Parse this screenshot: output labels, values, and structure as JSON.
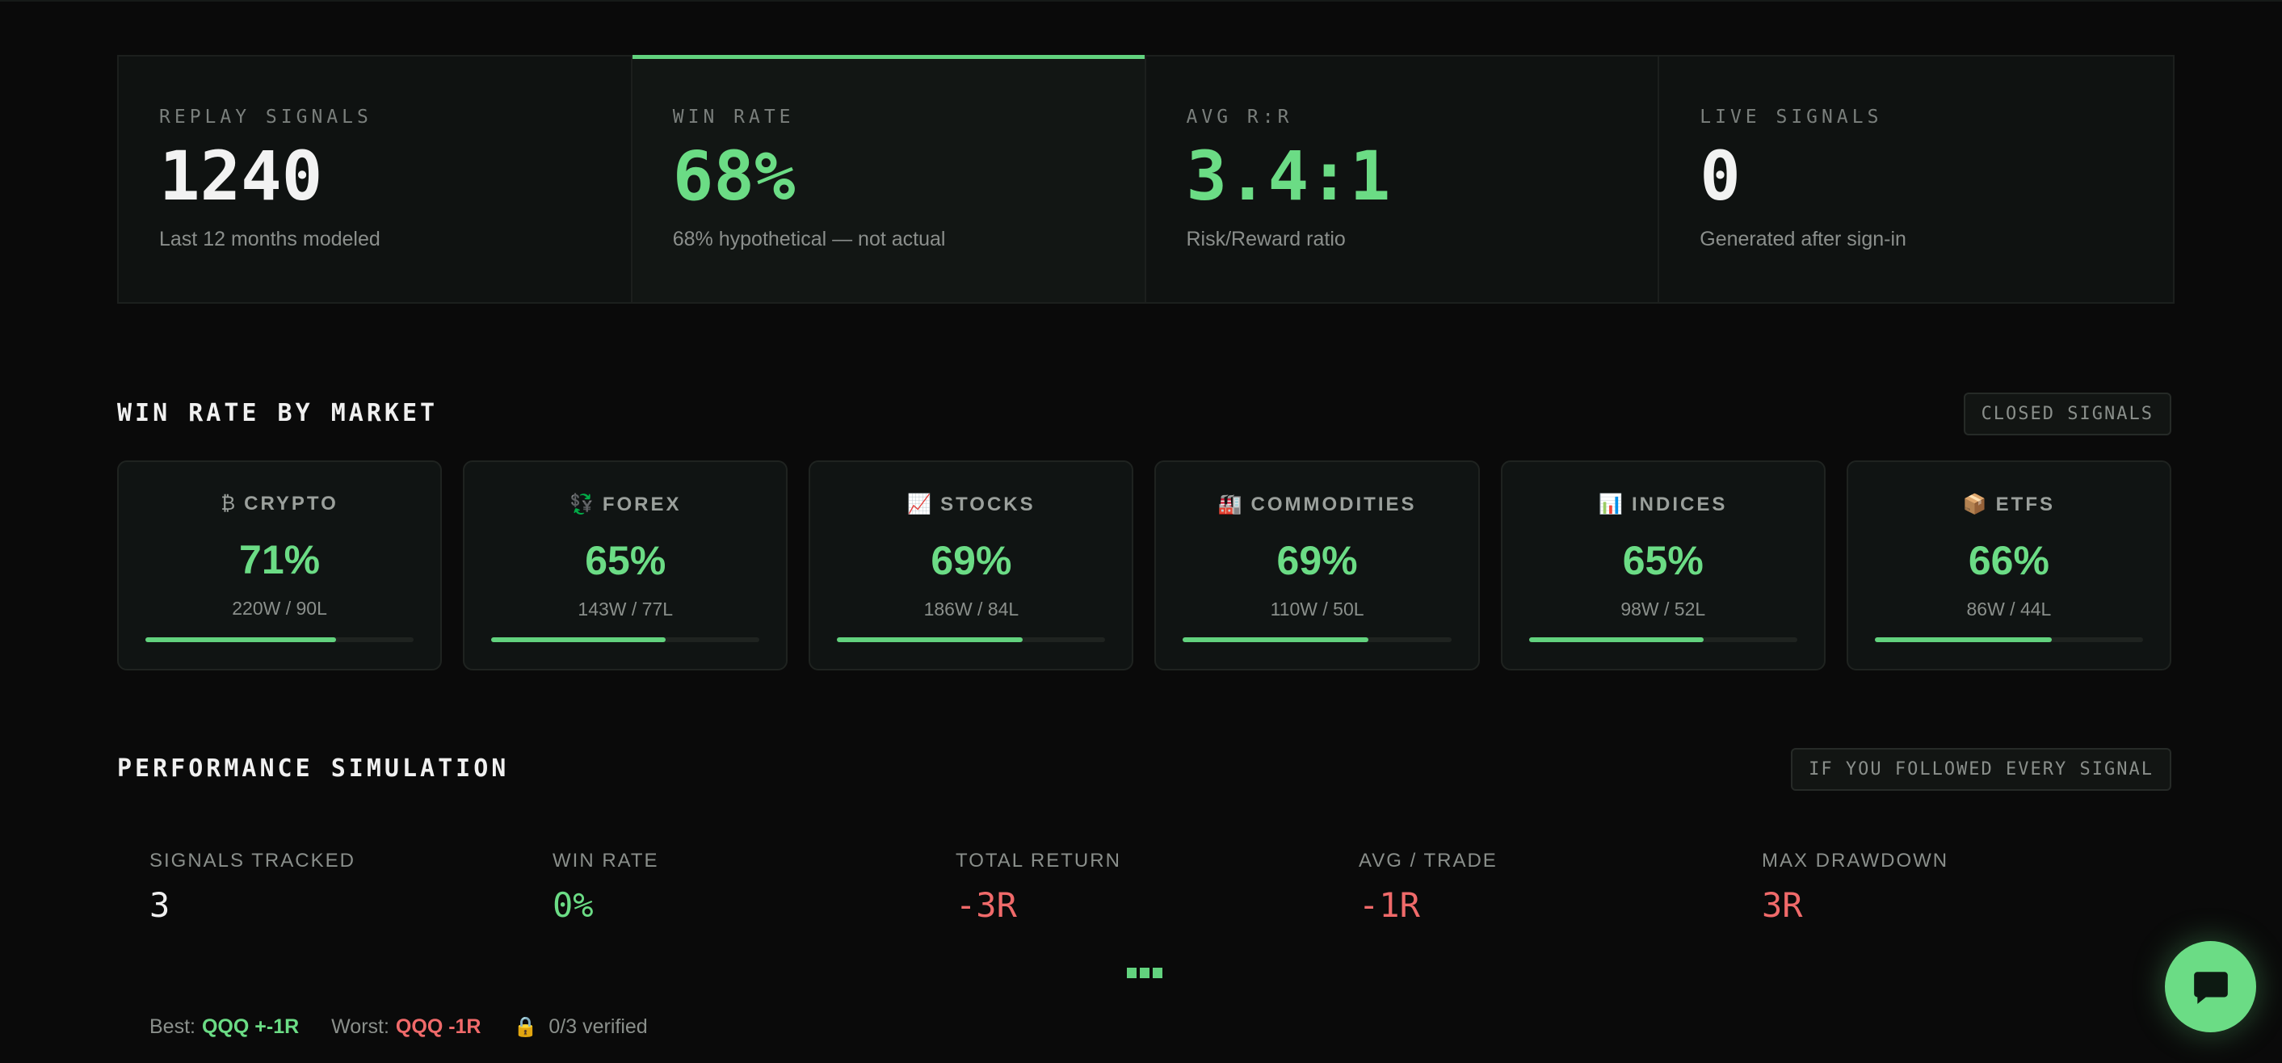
{
  "stats": [
    {
      "label": "REPLAY SIGNALS",
      "value": "1240",
      "sub": "Last 12 months modeled"
    },
    {
      "label": "WIN RATE",
      "value": "68%",
      "sub": "68% hypothetical — not actual"
    },
    {
      "label": "AVG R:R",
      "value": "3.4:1",
      "sub": "Risk/Reward ratio"
    },
    {
      "label": "LIVE SIGNALS",
      "value": "0",
      "sub": "Generated after sign-in"
    }
  ],
  "win_rate_section": {
    "title": "WIN RATE BY MARKET",
    "badge": "CLOSED SIGNALS"
  },
  "markets": [
    {
      "icon": "₿",
      "icon_name": "bitcoin-icon",
      "name": "CRYPTO",
      "rate": "71%",
      "record": "220W / 90L",
      "fill": 0.71
    },
    {
      "icon": "💱",
      "icon_name": "currency-exchange-icon",
      "name": "FOREX",
      "rate": "65%",
      "record": "143W / 77L",
      "fill": 0.65
    },
    {
      "icon": "📈",
      "icon_name": "chart-up-icon",
      "name": "STOCKS",
      "rate": "69%",
      "record": "186W / 84L",
      "fill": 0.69
    },
    {
      "icon": "🏭",
      "icon_name": "factory-icon",
      "name": "COMMODITIES",
      "rate": "69%",
      "record": "110W / 50L",
      "fill": 0.69
    },
    {
      "icon": "📊",
      "icon_name": "bar-chart-icon",
      "name": "INDICES",
      "rate": "65%",
      "record": "98W / 52L",
      "fill": 0.65
    },
    {
      "icon": "📦",
      "icon_name": "package-icon",
      "name": "ETFS",
      "rate": "66%",
      "record": "86W / 44L",
      "fill": 0.66
    }
  ],
  "performance": {
    "title": "PERFORMANCE SIMULATION",
    "badge": "IF YOU FOLLOWED EVERY SIGNAL",
    "metrics": [
      {
        "label": "SIGNALS TRACKED",
        "value": "3",
        "tone": "neutral"
      },
      {
        "label": "WIN RATE",
        "value": "0%",
        "tone": "green"
      },
      {
        "label": "TOTAL RETURN",
        "value": "-3R",
        "tone": "red"
      },
      {
        "label": "AVG / TRADE",
        "value": "-1R",
        "tone": "red"
      },
      {
        "label": "MAX DRAWDOWN",
        "value": "3R",
        "tone": "red"
      }
    ],
    "best_label": "Best:",
    "best_value": "QQQ +-1R",
    "worst_label": "Worst:",
    "worst_value": "QQQ -1R",
    "verified": "0/3 verified"
  },
  "colors": {
    "accent": "#6bdc85",
    "negative": "#f06a6a",
    "background": "#0a0a0a"
  }
}
